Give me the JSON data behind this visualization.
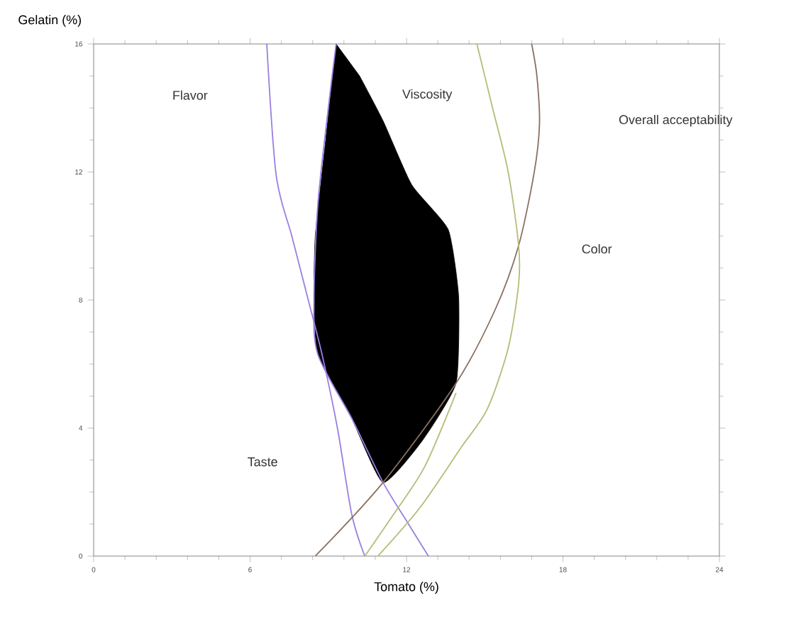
{
  "chart_data": {
    "type": "line",
    "xlabel": "Tomato (%)",
    "ylabel": "Gelatin (%)",
    "xlim": [
      0,
      24
    ],
    "ylim": [
      0,
      16
    ],
    "xticks": [
      0,
      6,
      12,
      18,
      24
    ],
    "yticks": [
      0,
      4,
      8,
      12,
      16
    ],
    "series": [
      {
        "type": "area",
        "color": "#000000",
        "x": [
          9.3,
          8.9,
          8.5,
          8.45,
          8.6,
          9.9,
          11.1,
          12.6,
          13.9,
          14.0,
          13.6,
          12.2,
          11.1,
          10.2
        ],
        "values": [
          16,
          13,
          10,
          8,
          6.3,
          4.3,
          2.3,
          3.6,
          5.4,
          8.1,
          10.2,
          11.6,
          13.6,
          15
        ]
      },
      {
        "color": "#9a7fe0",
        "x": [
          6.64,
          7.0,
          7.6,
          8.2,
          8.76,
          9.35,
          9.9,
          10.4
        ],
        "values": [
          16,
          11.9,
          10,
          8.1,
          6.3,
          4,
          1.3,
          0
        ]
      },
      {
        "color": "#9a7fe0",
        "x": [
          9.3,
          9.0,
          8.6,
          8.45,
          8.6,
          9.9,
          11.1,
          12.0,
          12.84
        ],
        "values": [
          16,
          14,
          11,
          8,
          6.3,
          4.3,
          2.3,
          1.1,
          0
        ]
      },
      {
        "color": "#8a7060",
        "x": [
          8.5,
          11.1,
          13.9,
          15.4,
          16.3,
          16.9,
          17.1,
          17.0,
          16.8
        ],
        "values": [
          0,
          2.3,
          5.4,
          7.7,
          9.7,
          12,
          13.5,
          15,
          16
        ]
      },
      {
        "color": "#b5bc78",
        "x": [
          10.9,
          12.5,
          14.1,
          15.1,
          15.9,
          16.3,
          16.3,
          15.9,
          15.3,
          14.7
        ],
        "values": [
          0,
          1.5,
          3.4,
          4.6,
          6.5,
          8.5,
          9.7,
          12,
          14,
          16
        ]
      },
      {
        "color": "#b5bc78",
        "x": [
          10.4,
          11.5,
          12.7,
          13.9
        ],
        "values": [
          0,
          1.3,
          2.8,
          5.1
        ]
      }
    ],
    "annotations": [
      "Flavor",
      "Viscosity",
      "Overall acceptability",
      "Color",
      "Taste"
    ]
  }
}
